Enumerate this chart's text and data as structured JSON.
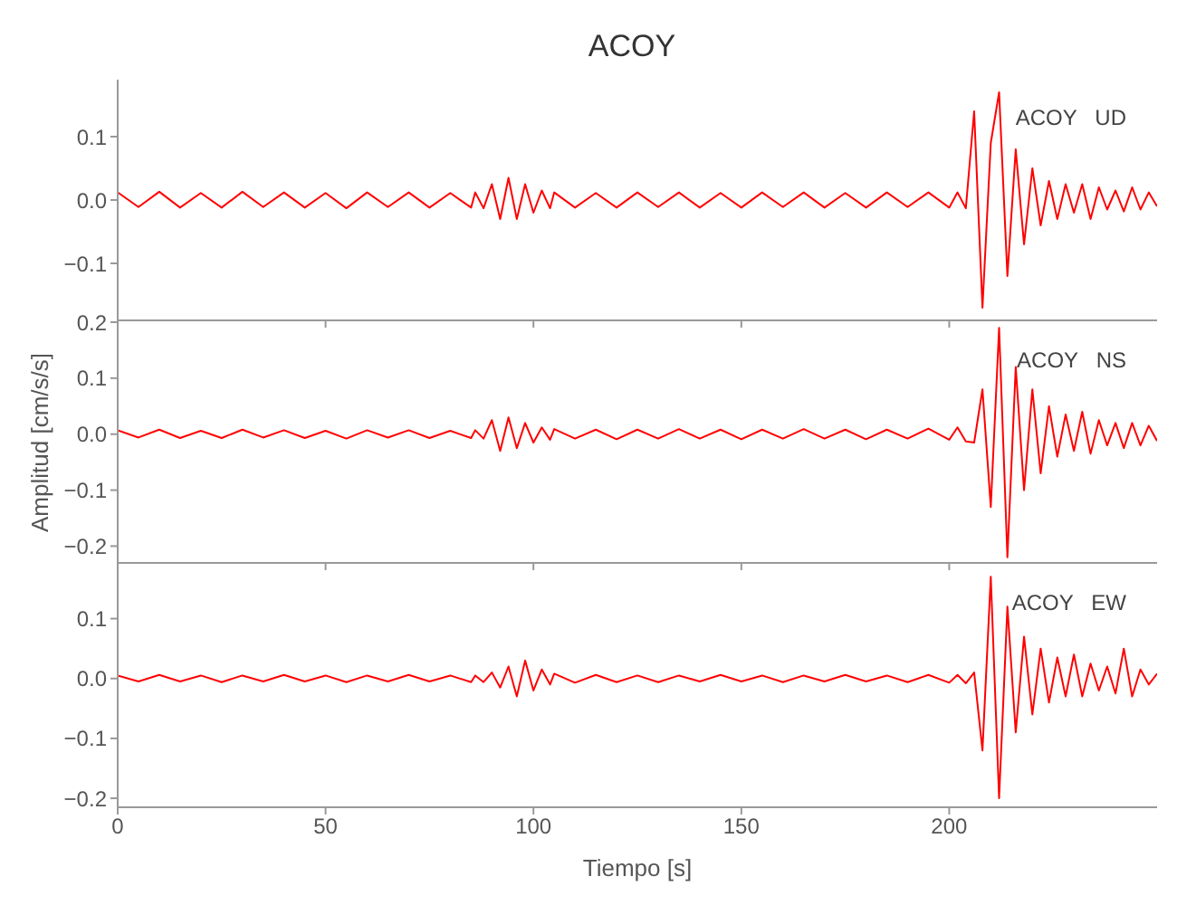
{
  "chart_data": [
    {
      "type": "line",
      "title": "ACOY",
      "annotations": [
        "ACOY   UD"
      ],
      "tick_labels": "y",
      "xlim": [
        0,
        250
      ],
      "xticks": [
        0,
        50,
        100,
        150,
        200
      ],
      "ylim": [
        -0.19,
        0.19
      ],
      "yticks": [
        {
          "value": 0.1,
          "label": "0.1"
        },
        {
          "value": 0,
          "label": "0.0"
        },
        {
          "value": -0.1,
          "label": "−0.1"
        }
      ],
      "x": [
        0,
        5,
        10,
        15,
        20,
        25,
        30,
        35,
        40,
        45,
        50,
        55,
        60,
        65,
        70,
        75,
        80,
        85,
        86,
        88,
        90,
        92,
        94,
        96,
        98,
        100,
        102,
        104,
        105,
        110,
        115,
        120,
        125,
        130,
        135,
        140,
        145,
        150,
        155,
        160,
        165,
        170,
        175,
        180,
        185,
        190,
        195,
        200,
        202,
        204,
        206,
        208,
        210,
        212,
        214,
        216,
        218,
        220,
        222,
        224,
        226,
        228,
        230,
        232,
        234,
        236,
        238,
        240,
        242,
        244,
        246,
        248,
        250
      ],
      "series": [
        {
          "color": "#ff0000",
          "values": [
            0.012,
            -0.011,
            0.013,
            -0.012,
            0.011,
            -0.012,
            0.013,
            -0.011,
            0.012,
            -0.012,
            0.011,
            -0.013,
            0.012,
            -0.011,
            0.012,
            -0.012,
            0.011,
            -0.012,
            0.012,
            -0.013,
            0.025,
            -0.03,
            0.035,
            -0.03,
            0.025,
            -0.02,
            0.015,
            -0.013,
            0.012,
            -0.012,
            0.011,
            -0.012,
            0.012,
            -0.011,
            0.012,
            -0.012,
            0.011,
            -0.012,
            0.012,
            -0.011,
            0.012,
            -0.012,
            0.011,
            -0.012,
            0.012,
            -0.011,
            0.012,
            -0.012,
            0.012,
            -0.013,
            0.14,
            -0.17,
            0.09,
            0.17,
            -0.12,
            0.08,
            -0.07,
            0.05,
            -0.04,
            0.03,
            -0.03,
            0.025,
            -0.02,
            0.025,
            -0.03,
            0.02,
            -0.015,
            0.015,
            -0.018,
            0.02,
            -0.015,
            0.012,
            -0.01
          ]
        }
      ]
    },
    {
      "type": "line",
      "ylabel": "Amplitud  [cm/s/s]",
      "annotations": [
        "ACOY   NS"
      ],
      "tick_labels": "y",
      "xlim": [
        0,
        250
      ],
      "xticks": [
        0,
        50,
        100,
        150,
        200
      ],
      "ylim": [
        -0.23,
        0.2
      ],
      "yticks": [
        {
          "value": 0.2,
          "label": "0.2"
        },
        {
          "value": 0.1,
          "label": "0.1"
        },
        {
          "value": 0,
          "label": "0.0"
        },
        {
          "value": -0.1,
          "label": "−0.1"
        },
        {
          "value": -0.2,
          "label": "−0.2"
        }
      ],
      "x": [
        0,
        5,
        10,
        15,
        20,
        25,
        30,
        35,
        40,
        45,
        50,
        55,
        60,
        65,
        70,
        75,
        80,
        85,
        86,
        88,
        90,
        92,
        94,
        96,
        98,
        100,
        102,
        104,
        105,
        110,
        115,
        120,
        125,
        130,
        135,
        140,
        145,
        150,
        155,
        160,
        165,
        170,
        175,
        180,
        185,
        190,
        195,
        200,
        202,
        204,
        206,
        208,
        210,
        212,
        214,
        216,
        218,
        220,
        222,
        224,
        226,
        228,
        230,
        232,
        234,
        236,
        238,
        240,
        242,
        244,
        246,
        248,
        250
      ],
      "series": [
        {
          "color": "#ff0000",
          "values": [
            0.007,
            -0.006,
            0.008,
            -0.007,
            0.006,
            -0.007,
            0.008,
            -0.006,
            0.007,
            -0.007,
            0.006,
            -0.008,
            0.007,
            -0.006,
            0.007,
            -0.007,
            0.006,
            -0.007,
            0.007,
            -0.008,
            0.025,
            -0.03,
            0.03,
            -0.025,
            0.02,
            -0.015,
            0.012,
            -0.01,
            0.009,
            -0.008,
            0.008,
            -0.009,
            0.008,
            -0.008,
            0.009,
            -0.008,
            0.008,
            -0.009,
            0.008,
            -0.008,
            0.009,
            -0.008,
            0.008,
            -0.009,
            0.008,
            -0.008,
            0.01,
            -0.01,
            0.012,
            -0.013,
            -0.015,
            0.08,
            -0.13,
            0.19,
            -0.22,
            0.12,
            -0.1,
            0.08,
            -0.07,
            0.05,
            -0.04,
            0.035,
            -0.03,
            0.04,
            -0.035,
            0.025,
            -0.02,
            0.02,
            -0.025,
            0.02,
            -0.02,
            0.015,
            -0.012
          ]
        }
      ]
    },
    {
      "type": "line",
      "xlabel": "Tiempo  [s]",
      "annotations": [
        "ACOY   EW"
      ],
      "xlim": [
        0,
        250
      ],
      "xticks": [
        0,
        50,
        100,
        150,
        200
      ],
      "ylim": [
        -0.215,
        0.19
      ],
      "yticks": [
        {
          "value": 0.1,
          "label": "0.1"
        },
        {
          "value": 0,
          "label": "0.0"
        },
        {
          "value": -0.1,
          "label": "−0.1"
        },
        {
          "value": -0.2,
          "label": "−0.2"
        }
      ],
      "x": [
        0,
        5,
        10,
        15,
        20,
        25,
        30,
        35,
        40,
        45,
        50,
        55,
        60,
        65,
        70,
        75,
        80,
        85,
        86,
        88,
        90,
        92,
        94,
        96,
        98,
        100,
        102,
        104,
        105,
        110,
        115,
        120,
        125,
        130,
        135,
        140,
        145,
        150,
        155,
        160,
        165,
        170,
        175,
        180,
        185,
        190,
        195,
        200,
        202,
        204,
        206,
        208,
        210,
        212,
        214,
        216,
        218,
        220,
        222,
        224,
        226,
        228,
        230,
        232,
        234,
        236,
        238,
        240,
        242,
        244,
        246,
        248,
        250
      ],
      "series": [
        {
          "color": "#ff0000",
          "values": [
            0.005,
            -0.005,
            0.006,
            -0.005,
            0.005,
            -0.006,
            0.005,
            -0.005,
            0.006,
            -0.005,
            0.005,
            -0.006,
            0.005,
            -0.005,
            0.006,
            -0.005,
            0.005,
            -0.006,
            0.005,
            -0.006,
            0.01,
            -0.015,
            0.02,
            -0.03,
            0.03,
            -0.02,
            0.015,
            -0.01,
            0.008,
            -0.007,
            0.006,
            -0.006,
            0.005,
            -0.006,
            0.005,
            -0.005,
            0.006,
            -0.005,
            0.005,
            -0.006,
            0.005,
            -0.005,
            0.006,
            -0.005,
            0.005,
            -0.006,
            0.006,
            -0.007,
            0.006,
            -0.008,
            0.01,
            -0.12,
            0.17,
            -0.2,
            0.12,
            -0.09,
            0.07,
            -0.06,
            0.05,
            -0.04,
            0.035,
            -0.03,
            0.04,
            -0.03,
            0.025,
            -0.02,
            0.02,
            -0.025,
            0.05,
            -0.03,
            0.015,
            -0.01,
            0.008
          ]
        }
      ]
    }
  ]
}
